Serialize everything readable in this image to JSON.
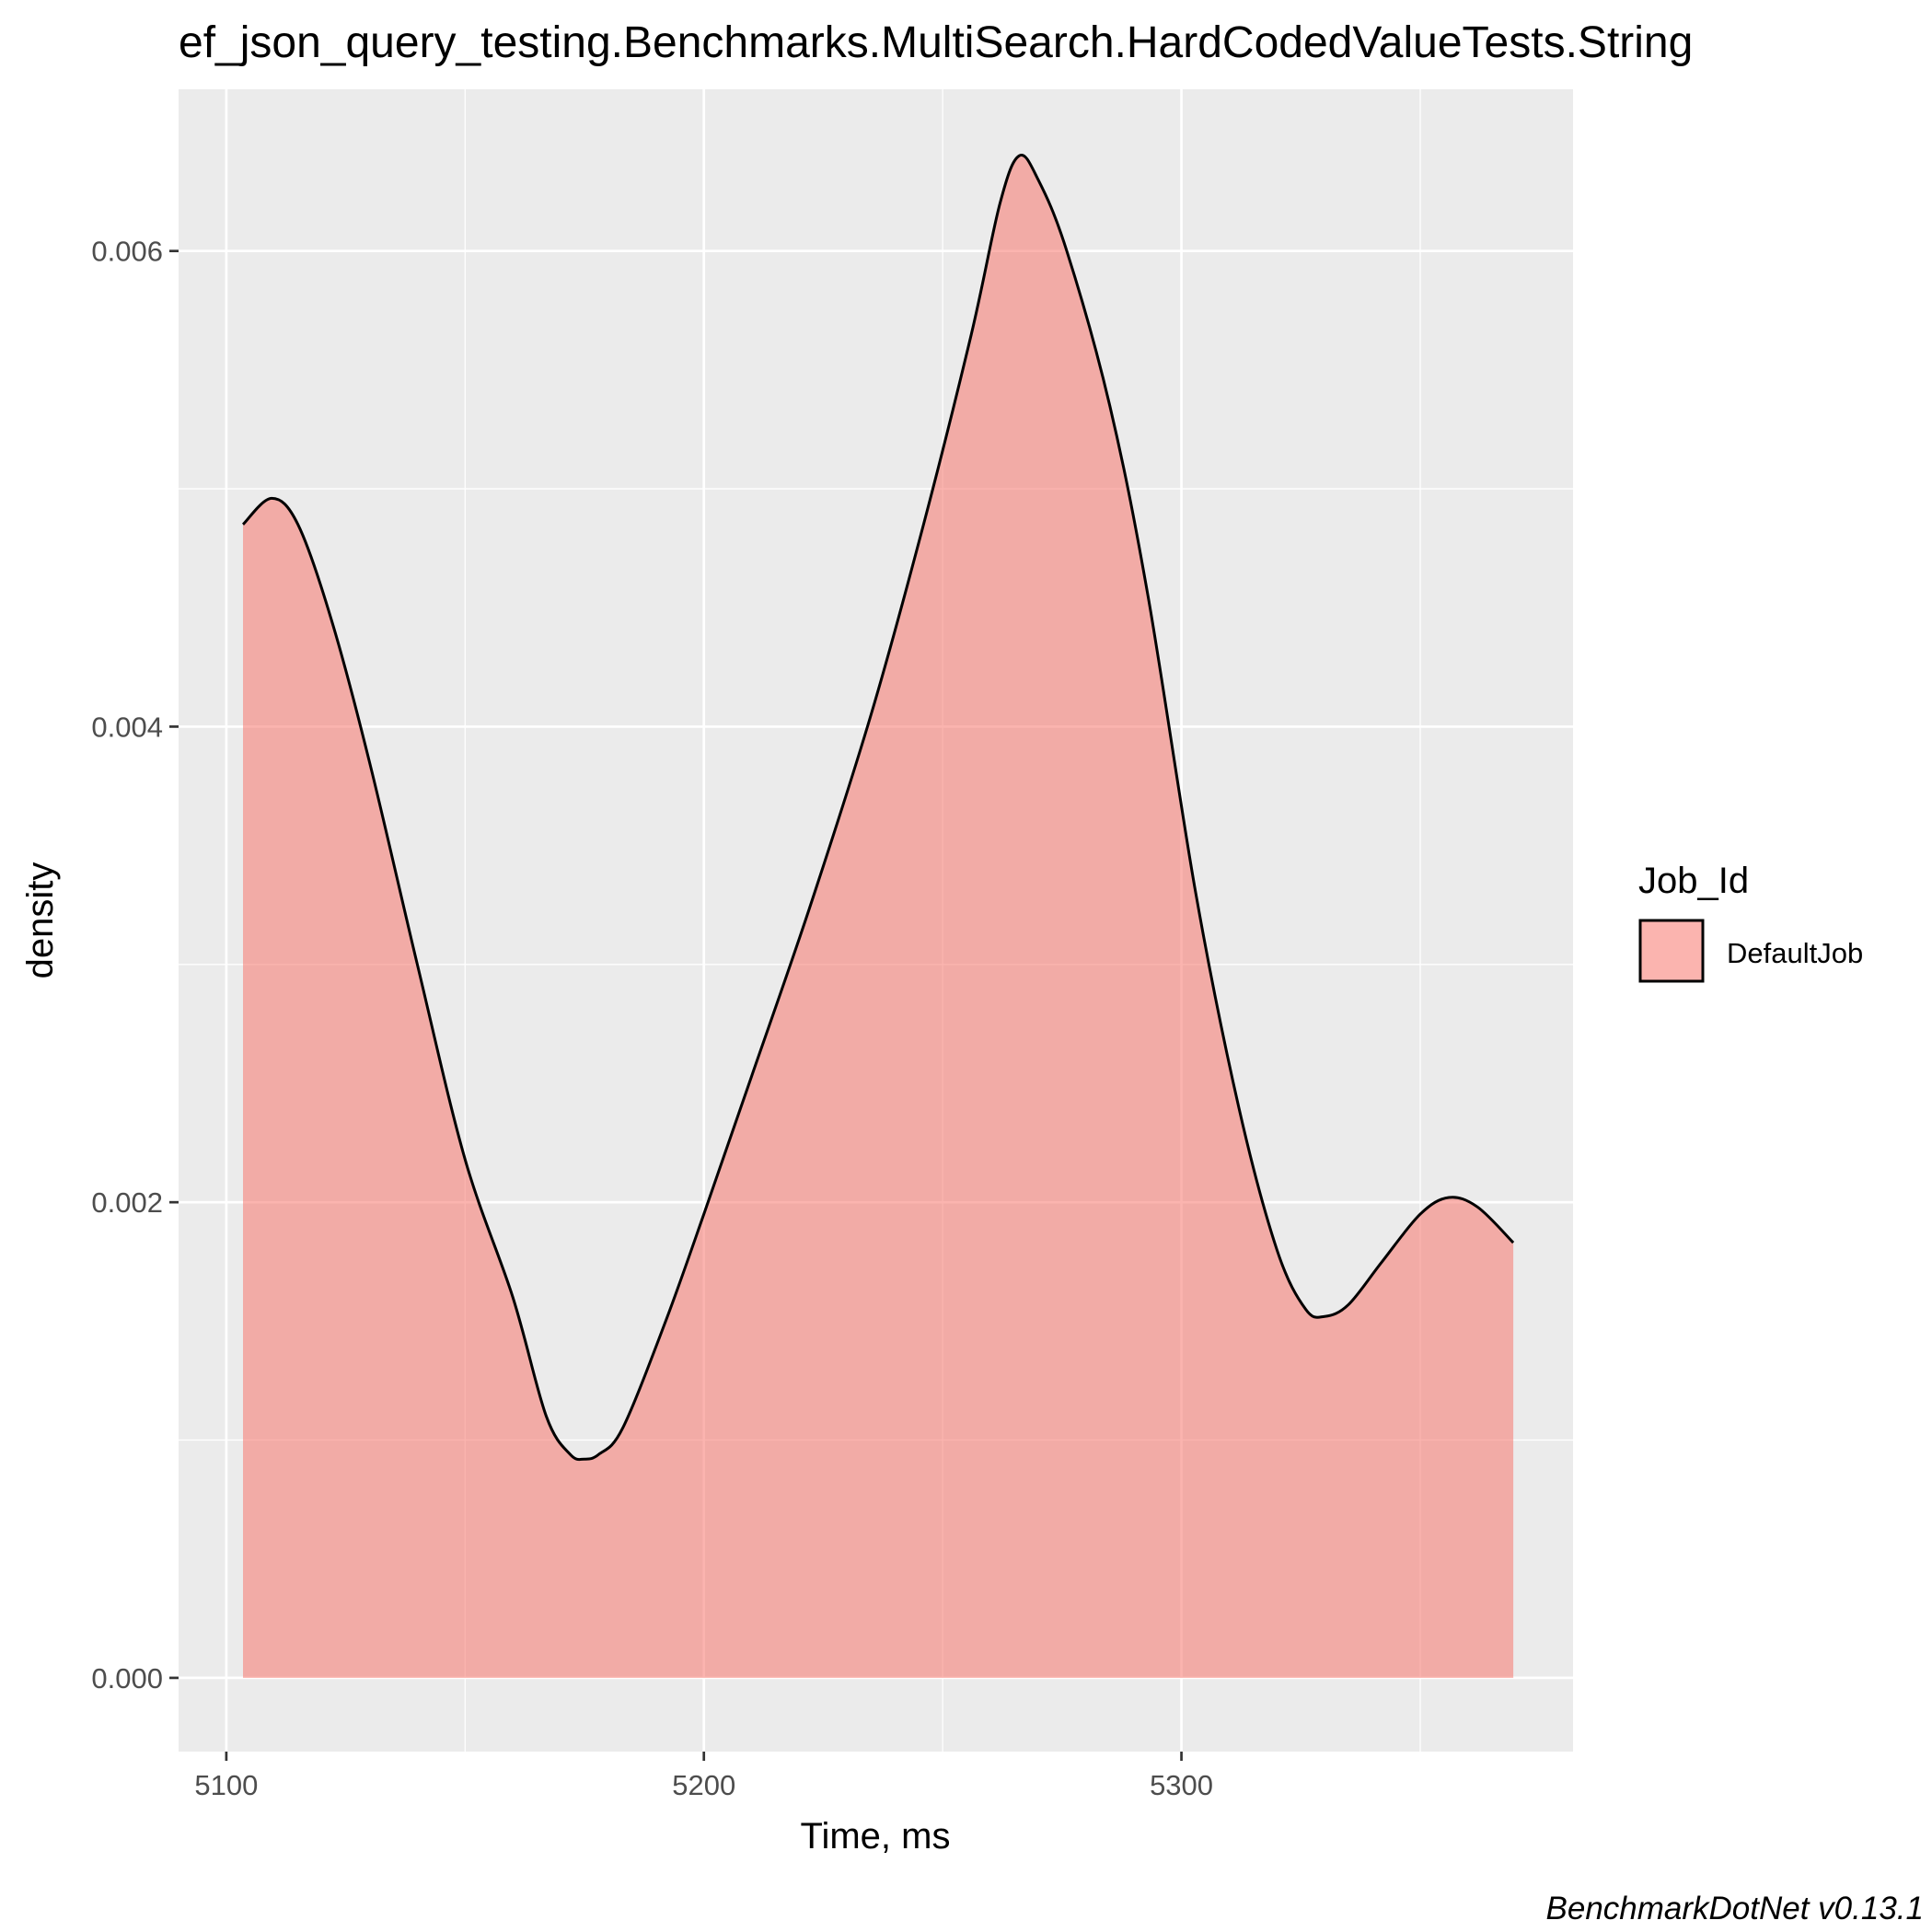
{
  "chart_data": {
    "type": "area",
    "subtype": "density",
    "title": "ef_json_query_testing.Benchmarks.MultiSearch.HardCodedValueTests.String",
    "xlabel": "Time, ms",
    "ylabel": "density",
    "caption": "BenchmarkDotNet v0.13.1",
    "xlim": [
      5090,
      5382
    ],
    "ylim": [
      -0.00031,
      0.00668
    ],
    "x_ticks": [
      5100,
      5200,
      5300
    ],
    "x_tick_labels": [
      "5100",
      "5200",
      "5300"
    ],
    "x_minor_ticks": [
      5150,
      5250,
      5350
    ],
    "y_ticks": [
      0,
      0.002,
      0.004,
      0.006
    ],
    "y_tick_labels": [
      "0.000",
      "0.002",
      "0.004",
      "0.006"
    ],
    "y_minor_ticks": [
      0.001,
      0.003,
      0.005
    ],
    "grid": true,
    "legend": {
      "title": "Job_Id",
      "position": "right"
    },
    "series": [
      {
        "name": "DefaultJob",
        "fill": "#f8766d",
        "fill_opacity": 0.55,
        "stroke": "#000000",
        "points": [
          [
            5103.5,
            0.00485
          ],
          [
            5109.5,
            0.00496
          ],
          [
            5115,
            0.00485
          ],
          [
            5122,
            0.00445
          ],
          [
            5130,
            0.00385
          ],
          [
            5140,
            0.003
          ],
          [
            5150,
            0.00218
          ],
          [
            5160,
            0.0016
          ],
          [
            5167,
            0.0011
          ],
          [
            5172,
            0.00094
          ],
          [
            5175,
            0.00092
          ],
          [
            5178,
            0.00094
          ],
          [
            5183,
            0.00105
          ],
          [
            5192,
            0.0015
          ],
          [
            5200,
            0.00195
          ],
          [
            5210,
            0.00253
          ],
          [
            5222,
            0.00323
          ],
          [
            5235,
            0.00405
          ],
          [
            5246,
            0.00485
          ],
          [
            5256,
            0.00565
          ],
          [
            5262,
            0.0062
          ],
          [
            5266,
            0.0064
          ],
          [
            5270,
            0.0063
          ],
          [
            5276,
            0.006
          ],
          [
            5285,
            0.00535
          ],
          [
            5293,
            0.00455
          ],
          [
            5303,
            0.0033
          ],
          [
            5312,
            0.0024
          ],
          [
            5320,
            0.0018
          ],
          [
            5326,
            0.00155
          ],
          [
            5330,
            0.00152
          ],
          [
            5335,
            0.00157
          ],
          [
            5342,
            0.00175
          ],
          [
            5350,
            0.00195
          ],
          [
            5356,
            0.00202
          ],
          [
            5362,
            0.00198
          ],
          [
            5369.5,
            0.00183
          ]
        ]
      }
    ]
  },
  "colors": {
    "panel_background": "#ebebeb",
    "grid_major": "#ffffff",
    "tick_label": "#4d4d4d"
  }
}
